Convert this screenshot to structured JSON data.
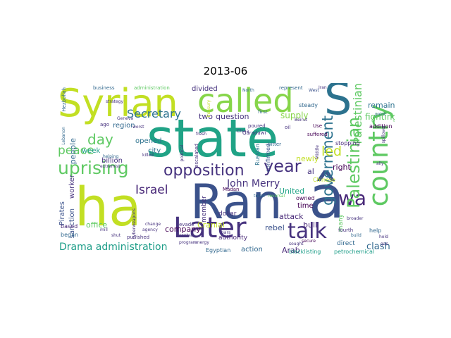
{
  "title": "2013-06",
  "colors": {
    "lime": "#c2df23",
    "yellow": "#dde318",
    "green": "#5ec962",
    "green_light": "#86d549",
    "teal": "#1f9e89",
    "teal2": "#20a386",
    "blue": "#3b528b",
    "blue2": "#2c728e",
    "navy": "#482878",
    "purple": "#440154",
    "purple2": "#46327e",
    "gray_blue": "#31688e"
  },
  "words": {
    "syrian": "Syrian",
    "called": "called",
    "s": "S",
    "state": "state",
    "ha": "ha",
    "ran": "Ran",
    "a_circ": "â",
    "later": "Later",
    "talk": "talk",
    "country": "country",
    "uprising": "uprising",
    "opposition": "opposition",
    "year": "year",
    "wa": "wa",
    "palestinian_big": "Palestinian",
    "government": "government",
    "palestinian_small": "Palestinian",
    "secretary": "Secretary",
    "day": "day",
    "peace": "peace",
    "israel": "Israel",
    "john_merry": "John Merry",
    "drama_admin": "Drama administration",
    "led": "led",
    "united": "United",
    "company": "company",
    "arab": "Arab",
    "action": "action",
    "clash": "clash",
    "fighting": "fighting",
    "remain": "remain",
    "supply": "supply",
    "question": "question",
    "two": "two",
    "divided": "divided",
    "right": "right",
    "newly": "newly",
    "al": "al",
    "week": "week",
    "office": "office",
    "billion": "billion",
    "city": "city",
    "opened": "opened",
    "region": "region",
    "people": "people",
    "worker": "worker",
    "sanction": "sanction",
    "pirates": "Pirates",
    "began": "began",
    "based": "based",
    "cranial": "Cranial",
    "member": "member",
    "rebel": "rebel",
    "attack": "attack",
    "bull": "bull",
    "time": "time",
    "many": "many",
    "addition": "addition",
    "direct": "direct",
    "help": "help",
    "stopping": "stopping",
    "dollar": "dollar",
    "authority": "authority",
    "owned": "owned",
    "egyptian": "Egyptian",
    "blacklisting": "blacklisting",
    "petrochemical": "petrochemical",
    "business": "business",
    "administration_small": "administration",
    "represent": "represent",
    "steady": "steady",
    "strategy": "strategy",
    "worst": "worst",
    "confirmed": "confirmed",
    "russian": "Russian",
    "chinese": "Chinese",
    "fourth": "fourth",
    "broader": "broader",
    "secure": "secure",
    "madan": "Madan",
    "evade": "evade",
    "hezbollah": "Hezbollah",
    "lebanon": "Lebanon",
    "extremist": "extremist",
    "punished": "punished",
    "helping": "helping",
    "bitter": "bitter",
    "suffered": "suffered",
    "use": "Use",
    "first": "first",
    "poured": "poured",
    "qaradawi": "Qaradawi",
    "beirut": "Beirut",
    "oil": "oil",
    "north": "North",
    "west": "West",
    "treasury": "Treasury",
    "killed": "killed",
    "geneva": "Geneva",
    "china": "China",
    "energy": "energy",
    "program": "program",
    "trend": "trend",
    "reversal": "reversal",
    "build": "build",
    "hold": "hold",
    "mill": "mill",
    "shut": "shut",
    "ago": "ago",
    "change": "change",
    "contain": "contain",
    "political": "political",
    "escalated": "escalated",
    "spillover": "spillover",
    "point": "point",
    "ally": "ally",
    "iran": "Iran",
    "agency": "agency",
    "pars": "pars",
    "middle": "Middle",
    "sought": "sought",
    "cyber": "cyberweapons",
    "fresh": "fresh",
    "gas": "gas"
  }
}
